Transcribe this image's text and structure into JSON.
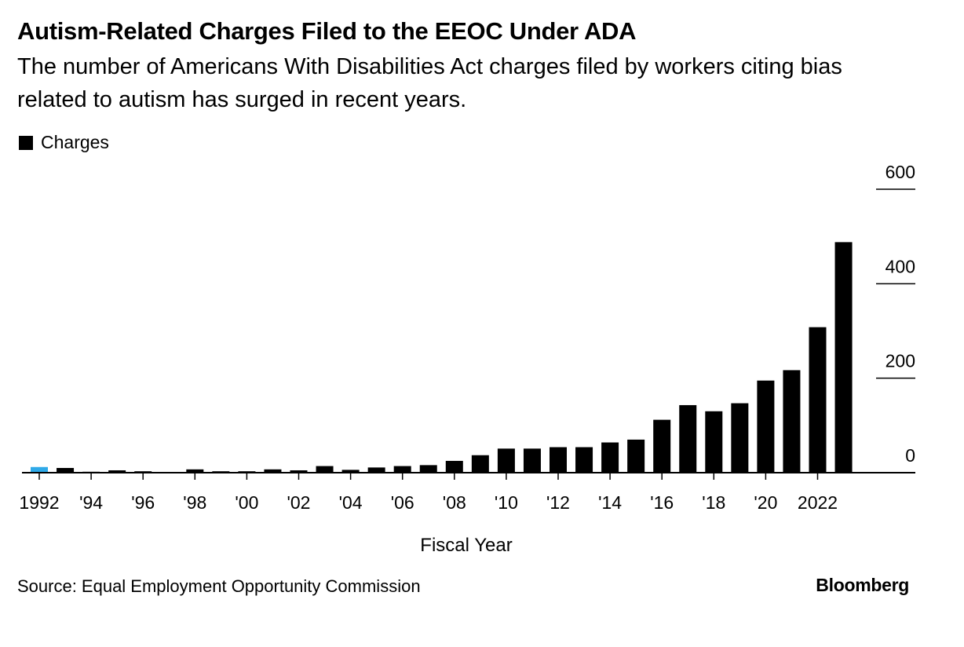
{
  "chart_data": {
    "type": "bar",
    "title": "Autism-Related Charges Filed to the EEOC Under ADA",
    "subtitle": "The number of Americans With Disabilities Act charges filed by workers citing bias related to autism has surged in recent years.",
    "legend": [
      "Charges"
    ],
    "xlabel": "Fiscal Year",
    "ylabel": "",
    "ylim": [
      0,
      600
    ],
    "yticks": [
      0,
      200,
      400,
      600
    ],
    "y_axis_position": "right",
    "categories": [
      "1992",
      "1993",
      "1994",
      "1995",
      "1996",
      "1997",
      "1998",
      "1999",
      "2000",
      "2001",
      "2002",
      "2003",
      "2004",
      "2005",
      "2006",
      "2007",
      "2008",
      "2009",
      "2010",
      "2011",
      "2012",
      "2013",
      "2014",
      "2015",
      "2016",
      "2017",
      "2018",
      "2019",
      "2020",
      "2021",
      "2022",
      "2023"
    ],
    "x_tick_labels": [
      {
        "category": "1992",
        "label": "1992"
      },
      {
        "category": "1994",
        "label": "'94"
      },
      {
        "category": "1996",
        "label": "'96"
      },
      {
        "category": "1998",
        "label": "'98"
      },
      {
        "category": "2000",
        "label": "'00"
      },
      {
        "category": "2002",
        "label": "'02"
      },
      {
        "category": "2004",
        "label": "'04"
      },
      {
        "category": "2006",
        "label": "'06"
      },
      {
        "category": "2008",
        "label": "'08"
      },
      {
        "category": "2010",
        "label": "'10"
      },
      {
        "category": "2012",
        "label": "'12"
      },
      {
        "category": "2014",
        "label": "'14"
      },
      {
        "category": "2016",
        "label": "'16"
      },
      {
        "category": "2018",
        "label": "'18"
      },
      {
        "category": "2020",
        "label": "'20"
      },
      {
        "category": "2022",
        "label": "2022"
      }
    ],
    "series": [
      {
        "name": "Charges",
        "color": "#000000",
        "values": [
          12,
          10,
          2,
          5,
          3,
          1,
          7,
          3,
          3,
          7,
          5,
          14,
          6,
          11,
          14,
          16,
          25,
          37,
          51,
          51,
          54,
          54,
          64,
          70,
          112,
          143,
          130,
          147,
          195,
          217,
          308,
          488
        ]
      }
    ],
    "highlight": {
      "category": "1992",
      "color": "#2fa9e8"
    }
  },
  "footer": {
    "source": "Source: Equal Employment Opportunity Commission",
    "brand": "Bloomberg"
  }
}
